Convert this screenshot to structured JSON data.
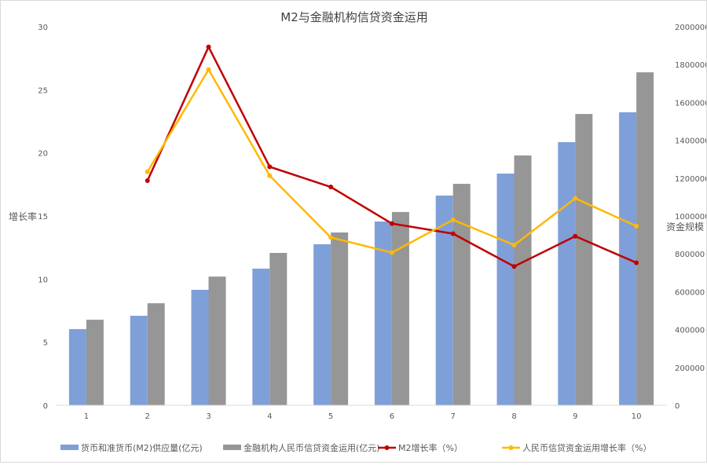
{
  "chart_data": {
    "type": "bar+line",
    "title": "M2与金融机构信贷资金运用",
    "ylabel_left": "增长率",
    "ylabel_right": "资金规模",
    "categories": [
      "1",
      "2",
      "3",
      "4",
      "5",
      "6",
      "7",
      "8",
      "9",
      "10"
    ],
    "ylim_left": [
      0,
      30
    ],
    "yticks_left": [
      "0",
      "5",
      "10",
      "15",
      "20",
      "25",
      "30"
    ],
    "ylim_right": [
      0,
      2000000
    ],
    "yticks_right": [
      "0",
      "200000",
      "400000",
      "600000",
      "800000",
      "1000000",
      "1200000",
      "1400000",
      "1600000",
      "1800000",
      "2000000"
    ],
    "grid": false,
    "legend_position": "bottom",
    "series": [
      {
        "name": "货币和准货币(M2)供应量(亿元)",
        "type": "bar",
        "axis": "right",
        "color": "#7f9fd9",
        "values": [
          402500,
          473000,
          610000,
          722000,
          851000,
          971000,
          1108000,
          1224000,
          1390000,
          1548000
        ]
      },
      {
        "name": "金融机构人民币信贷资金运用(亿元)",
        "type": "bar",
        "axis": "right",
        "color": "#969696",
        "values": [
          452000,
          539000,
          680000,
          805000,
          913000,
          1021000,
          1170000,
          1320000,
          1539000,
          1759000
        ]
      },
      {
        "name": "M2增长率（%）",
        "type": "line",
        "axis": "left",
        "color": "#c00000",
        "values": [
          null,
          17.8,
          28.4,
          18.9,
          17.3,
          14.4,
          13.6,
          11.0,
          13.4,
          11.3
        ]
      },
      {
        "name": "人民币信贷资金运用增长率（%）",
        "type": "line",
        "axis": "left",
        "color": "#ffb900",
        "values": [
          null,
          18.5,
          26.6,
          18.2,
          13.3,
          12.1,
          14.7,
          12.7,
          16.4,
          14.2
        ]
      }
    ]
  }
}
